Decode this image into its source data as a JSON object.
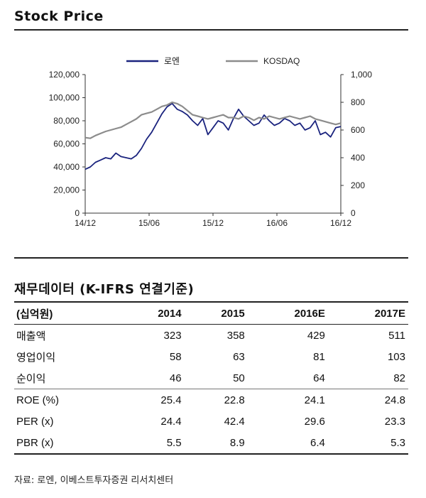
{
  "stock_section": {
    "title": "Stock Price"
  },
  "financial_section": {
    "title": "재무데이터   (K-IFRS 연결기준)"
  },
  "chart_data": {
    "type": "line",
    "x_ticks": [
      "14/12",
      "15/06",
      "15/12",
      "16/06",
      "16/12"
    ],
    "y_left": {
      "ticks": [
        "0",
        "20,000",
        "40,000",
        "60,000",
        "80,000",
        "100,000",
        "120,000"
      ],
      "range": [
        0,
        120000
      ]
    },
    "y_right": {
      "ticks": [
        "0",
        "200",
        "400",
        "600",
        "800",
        "1,000"
      ],
      "range": [
        0,
        1000
      ]
    },
    "legend_position": "top",
    "series": [
      {
        "name": "로엔",
        "axis": "left",
        "color": "#1a237e",
        "x": [
          0,
          0.02,
          0.04,
          0.06,
          0.08,
          0.1,
          0.12,
          0.14,
          0.16,
          0.18,
          0.2,
          0.22,
          0.24,
          0.26,
          0.28,
          0.3,
          0.32,
          0.34,
          0.36,
          0.38,
          0.4,
          0.42,
          0.44,
          0.46,
          0.48,
          0.5,
          0.52,
          0.54,
          0.56,
          0.58,
          0.6,
          0.62,
          0.64,
          0.66,
          0.68,
          0.7,
          0.72,
          0.74,
          0.76,
          0.78,
          0.8,
          0.82,
          0.84,
          0.86,
          0.88,
          0.9,
          0.92,
          0.94,
          0.96,
          0.98,
          1.0
        ],
        "values": [
          38000,
          40000,
          44000,
          46000,
          48000,
          47000,
          52000,
          49000,
          48000,
          47000,
          50000,
          56000,
          64000,
          70000,
          78000,
          86000,
          92000,
          95000,
          90000,
          88000,
          85000,
          80000,
          76000,
          82000,
          68000,
          74000,
          80000,
          78000,
          72000,
          82000,
          90000,
          84000,
          80000,
          76000,
          78000,
          85000,
          80000,
          76000,
          78000,
          82000,
          80000,
          76000,
          78000,
          72000,
          74000,
          80000,
          68000,
          70000,
          66000,
          74000,
          75000
        ]
      },
      {
        "name": "KOSDAQ",
        "axis": "right",
        "color": "#8c8c8c",
        "x": [
          0,
          0.02,
          0.04,
          0.06,
          0.08,
          0.1,
          0.12,
          0.14,
          0.16,
          0.18,
          0.2,
          0.22,
          0.24,
          0.26,
          0.28,
          0.3,
          0.32,
          0.34,
          0.36,
          0.38,
          0.4,
          0.42,
          0.44,
          0.46,
          0.48,
          0.5,
          0.52,
          0.54,
          0.56,
          0.58,
          0.6,
          0.62,
          0.64,
          0.66,
          0.68,
          0.7,
          0.72,
          0.74,
          0.76,
          0.78,
          0.8,
          0.82,
          0.84,
          0.86,
          0.88,
          0.9,
          0.92,
          0.94,
          0.96,
          0.98,
          1.0
        ],
        "values": [
          545,
          540,
          560,
          575,
          590,
          600,
          610,
          620,
          640,
          660,
          680,
          710,
          720,
          730,
          750,
          770,
          780,
          800,
          790,
          770,
          740,
          710,
          700,
          690,
          680,
          690,
          700,
          710,
          690,
          690,
          680,
          700,
          690,
          670,
          690,
          680,
          700,
          690,
          680,
          690,
          700,
          690,
          680,
          690,
          700,
          680,
          670,
          660,
          650,
          640,
          650
        ]
      }
    ]
  },
  "financial_table": {
    "headers": [
      "(십억원)",
      "2014",
      "2015",
      "2016E",
      "2017E"
    ],
    "rows": [
      [
        "매출액",
        "323",
        "358",
        "429",
        "511"
      ],
      [
        "영업이익",
        "58",
        "63",
        "81",
        "103"
      ],
      [
        "순이익",
        "46",
        "50",
        "64",
        "82"
      ],
      [
        "ROE (%)",
        "25.4",
        "22.8",
        "24.1",
        "24.8"
      ],
      [
        "PER (x)",
        "24.4",
        "42.4",
        "29.6",
        "23.3"
      ],
      [
        "PBR (x)",
        "5.5",
        "8.9",
        "6.4",
        "5.3"
      ]
    ]
  },
  "source": "자료: 로엔, 이베스트투자증권 리서치센터"
}
